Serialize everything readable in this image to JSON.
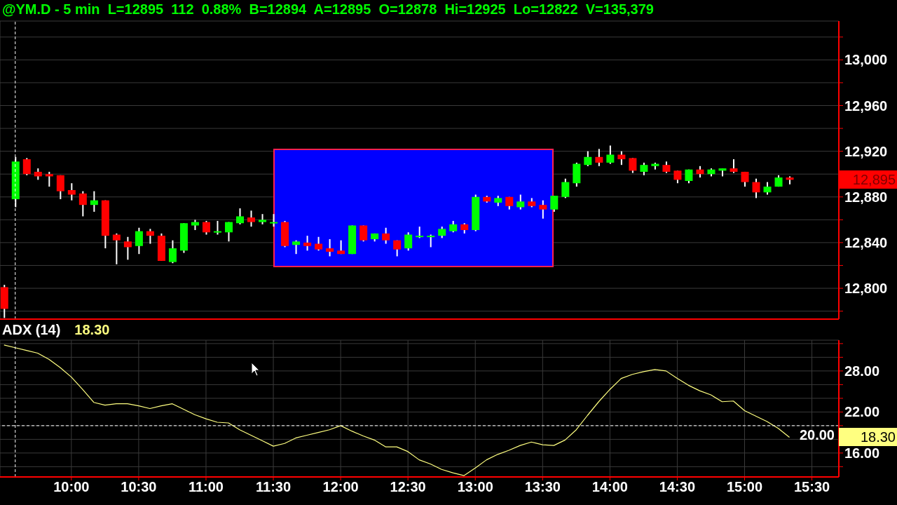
{
  "chart_data": [
    {
      "type": "candlestick",
      "title": "@YM.D - 5 min  L=12895  112  0.88%  B=12894  A=12895  O=12878  Hi=12925  Lo=12822  V=135,379",
      "x": [
        9.5,
        9.5833,
        9.6667,
        9.75,
        9.8333,
        9.9167,
        10,
        10.0833,
        10.1667,
        10.25,
        10.3333,
        10.4167,
        10.5,
        10.5833,
        10.6667,
        10.75,
        10.8333,
        10.9167,
        11,
        11.0833,
        11.1667,
        11.25,
        11.3333,
        11.4167,
        11.5,
        11.5833,
        11.6667,
        11.75,
        11.8333,
        11.9167,
        12,
        12.0833,
        12.1667,
        12.25,
        12.3333,
        12.4167,
        12.5,
        12.5833,
        12.6667,
        12.75,
        12.8333,
        12.9167,
        13,
        13.0833,
        13.1667,
        13.25,
        13.3333,
        13.4167,
        13.5,
        13.5833,
        13.6667,
        13.75,
        13.8333,
        13.9167,
        14,
        14.0833,
        14.1667,
        14.25,
        14.3333,
        14.4167,
        14.5,
        14.5833,
        14.6667,
        14.75,
        14.8333,
        14.9167,
        15,
        15.0833,
        15.1667,
        15.25,
        15.3333
      ],
      "ohlc": [
        [
          12801,
          12803,
          12774,
          12782
        ],
        [
          12878,
          12915,
          12871,
          12911
        ],
        [
          12913,
          12914,
          12899,
          12900
        ],
        [
          12902,
          12905,
          12895,
          12898
        ],
        [
          12900,
          12902,
          12889,
          12898
        ],
        [
          12899,
          12899,
          12878,
          12885
        ],
        [
          12886,
          12892,
          12877,
          12882
        ],
        [
          12883,
          12885,
          12863,
          12873
        ],
        [
          12873,
          12885,
          12867,
          12877
        ],
        [
          12877,
          12877,
          12835,
          12846
        ],
        [
          12847,
          12848,
          12821,
          12842
        ],
        [
          12841,
          12845,
          12825,
          12836
        ],
        [
          12837,
          12853,
          12830,
          12850
        ],
        [
          12850,
          12852,
          12839,
          12846
        ],
        [
          12846,
          12848,
          12824,
          12824
        ],
        [
          12823,
          12842,
          12822,
          12835
        ],
        [
          12833,
          12857,
          12831,
          12857
        ],
        [
          12855,
          12860,
          12851,
          12858
        ],
        [
          12858,
          12859,
          12847,
          12849
        ],
        [
          12849,
          12859,
          12847,
          12850
        ],
        [
          12849,
          12858,
          12841,
          12858
        ],
        [
          12857,
          12870,
          12856,
          12863
        ],
        [
          12862,
          12868,
          12854,
          12858
        ],
        [
          12858,
          12865,
          12856,
          12860
        ],
        [
          12857,
          12865,
          12854,
          12858
        ],
        [
          12858,
          12859,
          12836,
          12837
        ],
        [
          12838,
          12842,
          12830,
          12841
        ],
        [
          12840,
          12846,
          12833,
          12837
        ],
        [
          12839,
          12845,
          12833,
          12834
        ],
        [
          12835,
          12843,
          12828,
          12832
        ],
        [
          12833,
          12842,
          12830,
          12830
        ],
        [
          12830,
          12855,
          12830,
          12855
        ],
        [
          12855,
          12855,
          12841,
          12842
        ],
        [
          12843,
          12848,
          12841,
          12848
        ],
        [
          12848,
          12853,
          12839,
          12842
        ],
        [
          12842,
          12842,
          12828,
          12834
        ],
        [
          12835,
          12849,
          12833,
          12847
        ],
        [
          12845,
          12854,
          12844,
          12846
        ],
        [
          12845,
          12847,
          12836,
          12846
        ],
        [
          12846,
          12854,
          12844,
          12852
        ],
        [
          12850,
          12859,
          12849,
          12856
        ],
        [
          12856,
          12857,
          12848,
          12851
        ],
        [
          12851,
          12882,
          12850,
          12880
        ],
        [
          12880,
          12881,
          12875,
          12876
        ],
        [
          12875,
          12881,
          12872,
          12879
        ],
        [
          12880,
          12880,
          12869,
          12872
        ],
        [
          12871,
          12882,
          12869,
          12876
        ],
        [
          12876,
          12879,
          12871,
          12872
        ],
        [
          12873,
          12877,
          12861,
          12869
        ],
        [
          12869,
          12881,
          12867,
          12881
        ],
        [
          12880,
          12896,
          12879,
          12893
        ],
        [
          12892,
          12910,
          12889,
          12909
        ],
        [
          12908,
          12920,
          12907,
          12915
        ],
        [
          12915,
          12922,
          12907,
          12910
        ],
        [
          12910,
          12925,
          12909,
          12917
        ],
        [
          12917,
          12920,
          12908,
          12913
        ],
        [
          12914,
          12914,
          12901,
          12903
        ],
        [
          12902,
          12910,
          12899,
          12908
        ],
        [
          12907,
          12910,
          12904,
          12909
        ],
        [
          12908,
          12911,
          12901,
          12902
        ],
        [
          12903,
          12903,
          12892,
          12895
        ],
        [
          12894,
          12904,
          12892,
          12904
        ],
        [
          12904,
          12907,
          12897,
          12900
        ],
        [
          12900,
          12905,
          12898,
          12904
        ],
        [
          12903,
          12905,
          12898,
          12905
        ],
        [
          12905,
          12913,
          12901,
          12902
        ],
        [
          12902,
          12902,
          12889,
          12893
        ],
        [
          12893,
          12896,
          12879,
          12884
        ],
        [
          12884,
          12893,
          12882,
          12889
        ],
        [
          12889,
          12899,
          12889,
          12897
        ],
        [
          12897,
          12898,
          12891,
          12895
        ]
      ],
      "xlim": [
        9.47,
        15.7
      ],
      "xticks": [
        {
          "value": 10,
          "label": null
        },
        {
          "value": 10.5,
          "label": null
        },
        {
          "value": 11,
          "label": null
        },
        {
          "value": 11.5,
          "label": null
        },
        {
          "value": 12,
          "label": null
        },
        {
          "value": 12.5,
          "label": null
        },
        {
          "value": 13,
          "label": null
        },
        {
          "value": 13.5,
          "label": null
        },
        {
          "value": 14,
          "label": null
        },
        {
          "value": 14.5,
          "label": null
        },
        {
          "value": 15,
          "label": null
        },
        {
          "value": 15.5,
          "label": null
        }
      ],
      "ylim": [
        12773,
        13034
      ],
      "yticks": [
        {
          "value": 12780,
          "label": null
        },
        {
          "value": 12800,
          "label": "12,800"
        },
        {
          "value": 12820,
          "label": null
        },
        {
          "value": 12840,
          "label": "12,840"
        },
        {
          "value": 12860,
          "label": null
        },
        {
          "value": 12880,
          "label": "12,880"
        },
        {
          "value": 12900,
          "label": null
        },
        {
          "value": 12920,
          "label": "12,920"
        },
        {
          "value": 12940,
          "label": null
        },
        {
          "value": 12960,
          "label": "12,960"
        },
        {
          "value": 12980,
          "label": null
        },
        {
          "value": 13000,
          "label": "13,000"
        },
        {
          "value": 13020,
          "label": null
        }
      ],
      "tick_labels": "y",
      "grid": true,
      "ref_lines": [
        {
          "axis": "x",
          "value": 9.5833,
          "color": "#ffffff",
          "line_style": "dashed"
        }
      ],
      "annotations": [
        "12,895"
      ]
    },
    {
      "type": "line",
      "title": "ADX (14)",
      "x": [
        9.5,
        9.5833,
        9.6667,
        9.75,
        9.8333,
        9.9167,
        10,
        10.0833,
        10.1667,
        10.25,
        10.3333,
        10.4167,
        10.5,
        10.5833,
        10.6667,
        10.75,
        10.8333,
        10.9167,
        11,
        11.0833,
        11.1667,
        11.25,
        11.3333,
        11.4167,
        11.5,
        11.5833,
        11.6667,
        11.75,
        11.8333,
        11.9167,
        12,
        12.0833,
        12.1667,
        12.25,
        12.3333,
        12.4167,
        12.5,
        12.5833,
        12.6667,
        12.75,
        12.8333,
        12.9167,
        13,
        13.0833,
        13.1667,
        13.25,
        13.3333,
        13.4167,
        13.5,
        13.5833,
        13.6667,
        13.75,
        13.8333,
        13.9167,
        14,
        14.0833,
        14.1667,
        14.25,
        14.3333,
        14.4167,
        14.5,
        14.5833,
        14.6667,
        14.75,
        14.8333,
        14.9167,
        15,
        15.0833,
        15.1667,
        15.25,
        15.3333
      ],
      "series": [
        {
          "color": "#ffff80",
          "values": [
            31.8,
            31.4,
            31.0,
            30.6,
            29.7,
            28.5,
            27.1,
            25.3,
            23.4,
            23.0,
            23.2,
            23.2,
            22.9,
            22.5,
            22.9,
            23.2,
            22.4,
            21.6,
            21.0,
            20.5,
            20.4,
            19.4,
            18.6,
            17.8,
            17.0,
            17.4,
            18.2,
            18.6,
            19.0,
            19.4,
            20.0,
            19.2,
            18.5,
            17.9,
            16.9,
            16.9,
            16.2,
            15.0,
            14.4,
            13.6,
            13.1,
            12.7,
            13.8,
            15.0,
            15.8,
            16.4,
            17.1,
            17.6,
            17.2,
            17.1,
            17.9,
            19.4,
            21.5,
            23.5,
            25.3,
            26.9,
            27.5,
            27.9,
            28.2,
            28.0,
            26.9,
            25.9,
            25.1,
            24.5,
            23.5,
            23.6,
            22.2,
            21.4,
            20.6,
            19.6,
            18.3
          ]
        }
      ],
      "xlim": [
        9.47,
        15.7
      ],
      "xticks": [
        {
          "value": 10,
          "label": "10:00"
        },
        {
          "value": 10.5,
          "label": "10:30"
        },
        {
          "value": 11,
          "label": "11:00"
        },
        {
          "value": 11.5,
          "label": "11:30"
        },
        {
          "value": 12,
          "label": "12:00"
        },
        {
          "value": 12.5,
          "label": "12:30"
        },
        {
          "value": 13,
          "label": "13:00"
        },
        {
          "value": 13.5,
          "label": "13:30"
        },
        {
          "value": 14,
          "label": "14:00"
        },
        {
          "value": 14.5,
          "label": "14:30"
        },
        {
          "value": 15,
          "label": "15:00"
        },
        {
          "value": 15.5,
          "label": "15:30"
        }
      ],
      "ylim": [
        12.5,
        32.5
      ],
      "yticks": [
        {
          "value": 14,
          "label": null
        },
        {
          "value": 16,
          "label": "16.00"
        },
        {
          "value": 18,
          "label": null
        },
        {
          "value": 20,
          "label": null
        },
        {
          "value": 22,
          "label": "22.00"
        },
        {
          "value": 24,
          "label": null
        },
        {
          "value": 26,
          "label": null
        },
        {
          "value": 28,
          "label": "28.00"
        },
        {
          "value": 30,
          "label": null
        },
        {
          "value": 32,
          "label": null
        }
      ],
      "grid": true,
      "ref_lines": [
        {
          "axis": "x",
          "value": 9.5833,
          "color": "#ffffff",
          "line_style": "dashed"
        },
        {
          "axis": "y",
          "value": 20,
          "label": "20.00",
          "color": "#ffffff",
          "line_style": "dashed"
        }
      ],
      "annotations": [
        "18.30",
        "18.30"
      ]
    }
  ]
}
